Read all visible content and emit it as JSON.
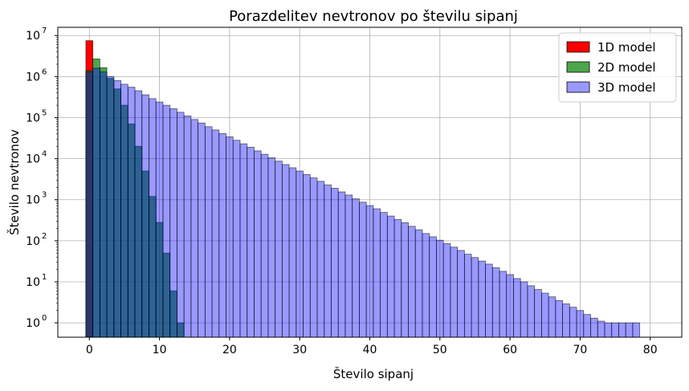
{
  "chart_data": {
    "type": "bar",
    "title": "Porazdelitev nevtronov po številu sipanj",
    "xlabel": "Število sipanj",
    "ylabel": "Število nevtronov",
    "x_ticks": [
      "0",
      "10",
      "20",
      "30",
      "40",
      "50",
      "60",
      "70",
      "80"
    ],
    "y_ticks": [
      "10",
      "10",
      "10",
      "10",
      "10",
      "10",
      "10",
      "10"
    ],
    "y_tick_exponents": [
      "0",
      "1",
      "2",
      "3",
      "4",
      "5",
      "6",
      "7"
    ],
    "xlim": [
      -4.5,
      84.5
    ],
    "ylog_lim": [
      -0.35,
      7.2
    ],
    "scale": "log",
    "grid": true,
    "legend_position": "top-right",
    "series": [
      {
        "name": "1D model",
        "color": "#ff0000",
        "alpha": 1.0,
        "values": [
          7500000
        ]
      },
      {
        "name": "2D model",
        "color": "#008000",
        "alpha": 0.7,
        "values": [
          1400000,
          2700000,
          1650000,
          900000,
          500000,
          200000,
          70000,
          20000,
          5000,
          1200,
          280,
          50,
          6,
          1
        ]
      },
      {
        "name": "3D model",
        "color": "#0000ff",
        "alpha": 0.4,
        "values": [
          1300000,
          1600000,
          1300000,
          1000000,
          800000,
          650000,
          550000,
          450000,
          360000,
          290000,
          240000,
          200000,
          165000,
          135000,
          110000,
          90000,
          74000,
          60000,
          50000,
          41000,
          34000,
          28000,
          23000,
          19000,
          15500,
          12800,
          10500,
          8700,
          7200,
          6000,
          5000,
          4100,
          3400,
          2800,
          2300,
          1900,
          1550,
          1300,
          1050,
          870,
          720,
          600,
          490,
          400,
          330,
          275,
          225,
          185,
          150,
          125,
          103,
          85,
          70,
          58,
          47,
          39,
          32,
          27,
          22,
          18,
          15,
          12,
          10,
          8,
          6.5,
          5.3,
          4.3,
          3.5,
          2.9,
          2.4,
          2,
          1.6,
          1.3,
          1.1,
          1,
          1,
          1,
          1,
          1
        ]
      }
    ]
  }
}
